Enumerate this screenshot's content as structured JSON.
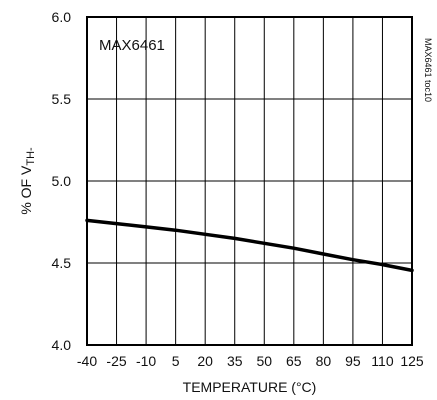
{
  "chart_data": {
    "type": "line",
    "xlabel": "TEMPERATURE (°C)",
    "ylabel": {
      "main": "% OF V",
      "sub": "TH-"
    },
    "annotation": "MAX6461",
    "side_label": "MAX6461 toc10",
    "xlim": [
      -40,
      125
    ],
    "ylim": [
      4.0,
      6.0
    ],
    "x_ticks": [
      -40,
      -25,
      -10,
      5,
      20,
      35,
      50,
      65,
      80,
      95,
      110,
      125
    ],
    "y_ticks": [
      "4.0",
      "4.5",
      "5.0",
      "5.5",
      "6.0"
    ],
    "grid": true,
    "series": [
      {
        "x": [
          -40,
          -25,
          -10,
          5,
          20,
          35,
          50,
          65,
          80,
          95,
          110,
          125
        ],
        "y": [
          4.76,
          4.74,
          4.72,
          4.7,
          4.675,
          4.65,
          4.62,
          4.59,
          4.555,
          4.52,
          4.49,
          4.455
        ]
      }
    ]
  }
}
